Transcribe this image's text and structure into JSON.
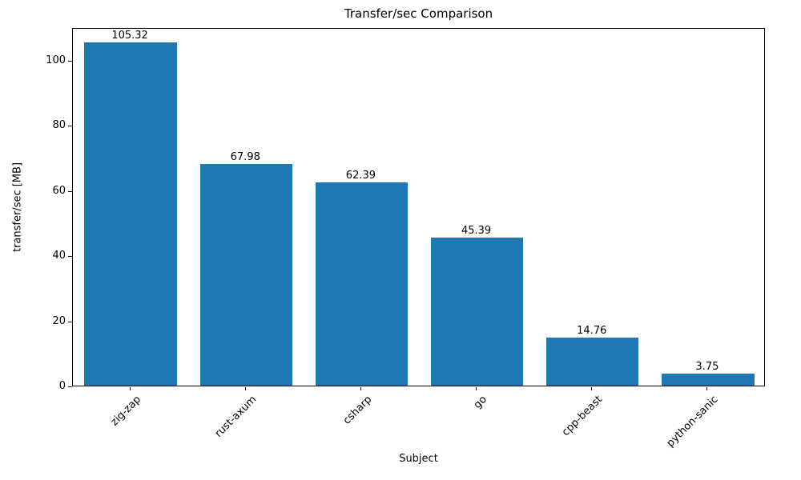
{
  "chart_data": {
    "type": "bar",
    "title": "Transfer/sec Comparison",
    "xlabel": "Subject",
    "ylabel": "transfer/sec [MB]",
    "categories": [
      "zig-zap",
      "rust-axum",
      "csharp",
      "go",
      "cpp-beast",
      "python-sanic"
    ],
    "values": [
      105.32,
      67.98,
      62.39,
      45.39,
      14.76,
      3.75
    ],
    "bar_labels": [
      "105.32",
      "67.98",
      "62.39",
      "45.39",
      "14.76",
      "3.75"
    ],
    "yticks": [
      0,
      20,
      40,
      60,
      80,
      100
    ],
    "ylim": [
      0,
      110
    ],
    "bar_color": "#1f77b4",
    "grid": false,
    "legend": "none"
  }
}
